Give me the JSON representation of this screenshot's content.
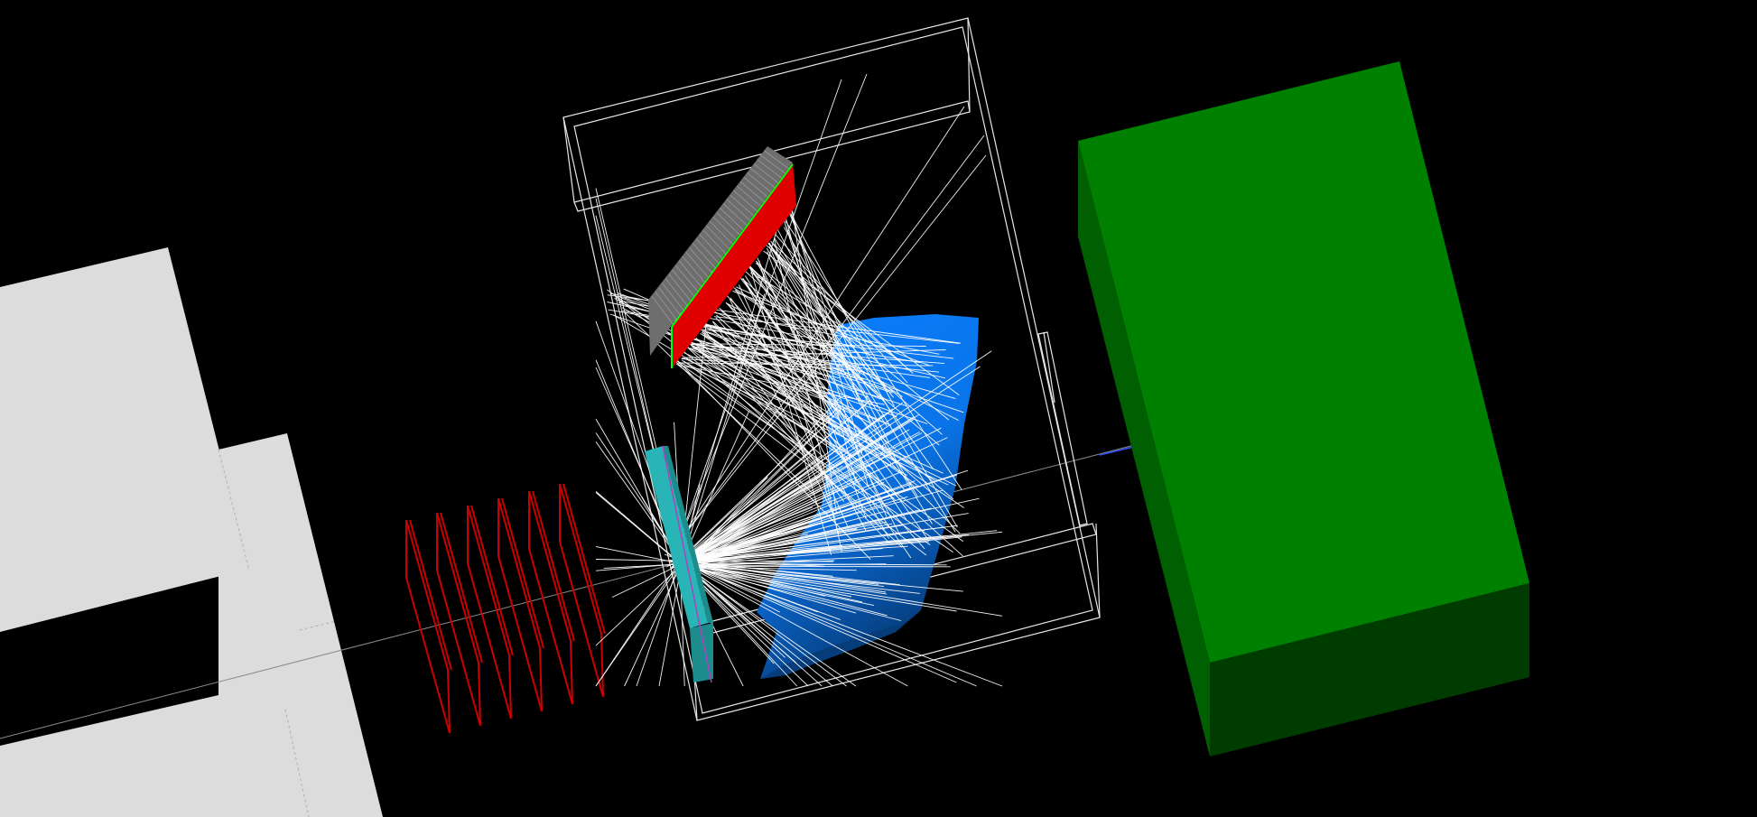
{
  "scene": {
    "background_color": "#000000",
    "colors": {
      "shield_light": "#dcdcdc",
      "shield_edge": "#b0b0b0",
      "tracker_planes": "#cc0000",
      "radiator": "#29b5b5",
      "radiator_edge": "#1c8c8c",
      "mirror_front": "#0a7fff",
      "mirror_dark": "#063c7a",
      "sensor_plate_gray": "#6e6e6e",
      "sensor_plate_red": "#e00000",
      "sensor_edge_green": "#00ff00",
      "vessel_wireframe": "#e6e6e6",
      "photon_tracks": "#ffffff",
      "beam_line": "#8c8c8c",
      "beam_marker": "#3050ff",
      "calorimeter_top": "#008000",
      "calorimeter_side": "#005f00",
      "calorimeter_bottom": "#003c00"
    },
    "tracker_plane_count": 6,
    "photon_track_count": 260
  }
}
